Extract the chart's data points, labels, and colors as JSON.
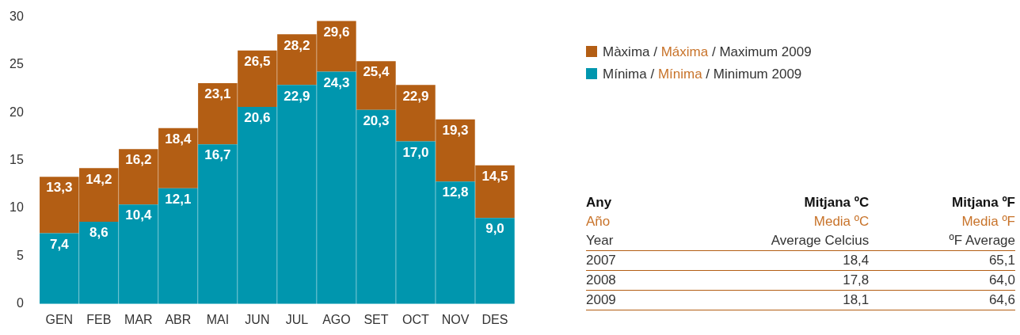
{
  "chart_data": [
    {
      "type": "bar",
      "stacked": true,
      "categories": [
        "GEN",
        "FEB",
        "MAR",
        "ABR",
        "MAI",
        "JUN",
        "JUL",
        "AGO",
        "SET",
        "OCT",
        "NOV",
        "DES"
      ],
      "series": [
        {
          "name": "Mínima / Mínima / Minimum 2009",
          "color": "#0096ae",
          "values": [
            7.4,
            8.6,
            10.4,
            12.1,
            16.7,
            20.6,
            22.9,
            24.3,
            20.3,
            17.0,
            12.8,
            9.0
          ],
          "value_labels": [
            "7,4",
            "8,6",
            "10,4",
            "12,1",
            "16,7",
            "20,6",
            "22,9",
            "24,3",
            "20,3",
            "17,0",
            "12,8",
            "9,0"
          ]
        },
        {
          "name": "Màxima / Máxima / Maximum 2009",
          "color": "#b35e14",
          "values": [
            5.9,
            5.6,
            5.8,
            6.3,
            6.4,
            5.9,
            5.3,
            5.3,
            5.1,
            5.9,
            6.5,
            5.5
          ]
        }
      ],
      "totals": [
        "13,3",
        "14,2",
        "16,2",
        "18,4",
        "23,1",
        "26,5",
        "28,2",
        "29,6",
        "25,4",
        "22,9",
        "19,3",
        "14,5"
      ],
      "ylim": [
        0,
        30
      ],
      "yticks": [
        0,
        5,
        10,
        15,
        20,
        25,
        30
      ],
      "grid": false,
      "legend": "right"
    },
    {
      "type": "other",
      "annotations": [
        "Any",
        "Mitjana ºC",
        "Mitjana ºF",
        "Año",
        "Media ºC",
        "Media ºF",
        "Year",
        "Average Celcius",
        "ºF Average",
        "2007",
        "18,4",
        "65,1",
        "2008",
        "17,8",
        "64,0",
        "2009",
        "18,1",
        "64,6"
      ]
    }
  ]
}
